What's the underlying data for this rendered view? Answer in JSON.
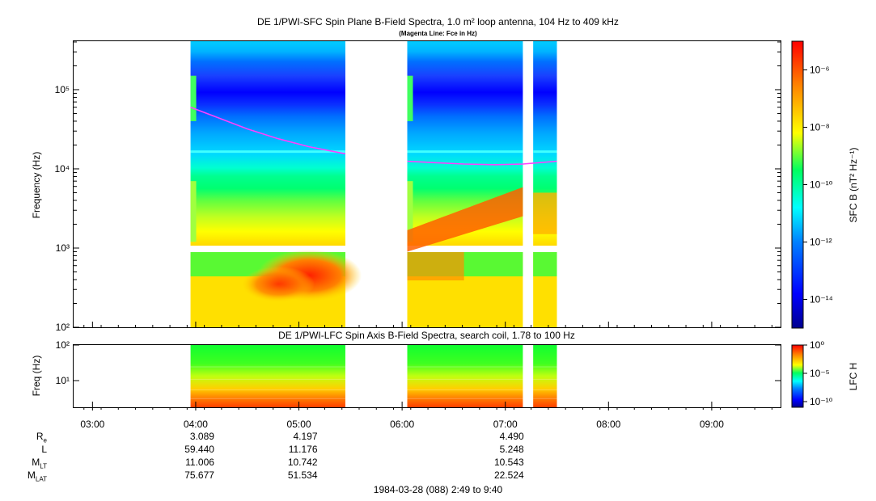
{
  "header": {
    "title": "DE 1/PWI-SFC  Spin Plane B-Field Spectra, 1.0 m² loop antenna, 104 Hz to 409 kHz",
    "subtitle": "(Magenta Line: Fce in Hz)"
  },
  "lfc": {
    "title": "DE 1/PWI-LFC  Spin Axis B-Field Spectra, search coil, 1.78 to 100 Hz",
    "ylabel": "Freq (Hz)",
    "colorbar_label": "LFC H"
  },
  "sfc": {
    "ylabel": "Frequency (Hz)",
    "colorbar_label": "SFC B (nT² Hz⁻¹)"
  },
  "footer": {
    "date_range": "1984-03-28 (088) 2:49 to 9:40"
  },
  "colors": {
    "magenta_line": "#ff40ff",
    "gap": "#ffffff"
  },
  "chart_data": [
    {
      "type": "heatmap",
      "name": "SFC spectrogram",
      "title": "DE 1/PWI-SFC  Spin Plane B-Field Spectra, 1.0 m² loop antenna, 104 Hz to 409 kHz",
      "xlabel": "",
      "ylabel": "Frequency (Hz)",
      "yscale": "log",
      "ylim": [
        100,
        409000
      ],
      "xlim_hours": [
        2.817,
        9.667
      ],
      "y_ticks": [
        {
          "v": 100,
          "label": "10²"
        },
        {
          "v": 1000,
          "label": "10³"
        },
        {
          "v": 10000,
          "label": "10⁴"
        },
        {
          "v": 100000,
          "label": "10⁵"
        }
      ],
      "data_segments_hours": [
        [
          3.95,
          5.45
        ],
        [
          6.05,
          7.17
        ],
        [
          7.27,
          7.5
        ]
      ],
      "fce_line": {
        "segment1": {
          "t": [
            3.95,
            4.2,
            4.5,
            4.8,
            5.1,
            5.45
          ],
          "f": [
            60000,
            45000,
            32000,
            24000,
            19000,
            15500
          ]
        },
        "segment2": {
          "t": [
            6.05,
            6.3,
            6.6,
            6.9,
            7.17,
            7.27,
            7.5
          ],
          "f": [
            12500,
            12000,
            11500,
            11300,
            11500,
            11800,
            12500
          ]
        }
      },
      "colorbar": {
        "label": "SFC B (nT² Hz⁻¹)",
        "scale": "log",
        "range": [
          1e-15,
          1e-05
        ],
        "tick_labels": [
          "10⁻⁶",
          "10⁻⁸",
          "10⁻¹⁰",
          "10⁻¹²",
          "10⁻¹⁴"
        ]
      }
    },
    {
      "type": "heatmap",
      "name": "LFC spectrogram",
      "title": "DE 1/PWI-LFC  Spin Axis B-Field Spectra, search coil, 1.78 to 100 Hz",
      "ylabel": "Freq (Hz)",
      "yscale": "log",
      "ylim": [
        1.78,
        100
      ],
      "y_ticks": [
        {
          "v": 10,
          "label": "10¹"
        },
        {
          "v": 100,
          "label": "10²"
        }
      ],
      "data_segments_hours": [
        [
          3.95,
          5.45
        ],
        [
          6.05,
          7.17
        ],
        [
          7.27,
          7.5
        ]
      ],
      "colorbar": {
        "label": "LFC H",
        "scale": "log",
        "range": [
          1e-11,
          1
        ],
        "tick_labels": [
          "10⁰",
          "10⁻⁵",
          "10⁻¹⁰"
        ]
      }
    }
  ],
  "x_axis": {
    "ticks": [
      {
        "h": 3,
        "label": "03:00"
      },
      {
        "h": 4,
        "label": "04:00"
      },
      {
        "h": 5,
        "label": "05:00"
      },
      {
        "h": 6,
        "label": "06:00"
      },
      {
        "h": 7,
        "label": "07:00"
      },
      {
        "h": 8,
        "label": "08:00"
      },
      {
        "h": 9,
        "label": "09:00"
      }
    ]
  },
  "ephemeris": {
    "labels": [
      {
        "main": "R",
        "sub": "e"
      },
      {
        "main": "L",
        "sub": ""
      },
      {
        "main": "M",
        "sub": "LT"
      },
      {
        "main": "M",
        "sub": "LAT"
      }
    ],
    "columns": [
      {
        "h": 4,
        "values": [
          "3.089",
          "59.440",
          "11.006",
          "75.677"
        ]
      },
      {
        "h": 5,
        "values": [
          "4.197",
          "11.176",
          "10.742",
          "51.534"
        ]
      },
      {
        "h": 7,
        "values": [
          "4.490",
          "5.248",
          "10.543",
          "22.524"
        ]
      }
    ]
  }
}
